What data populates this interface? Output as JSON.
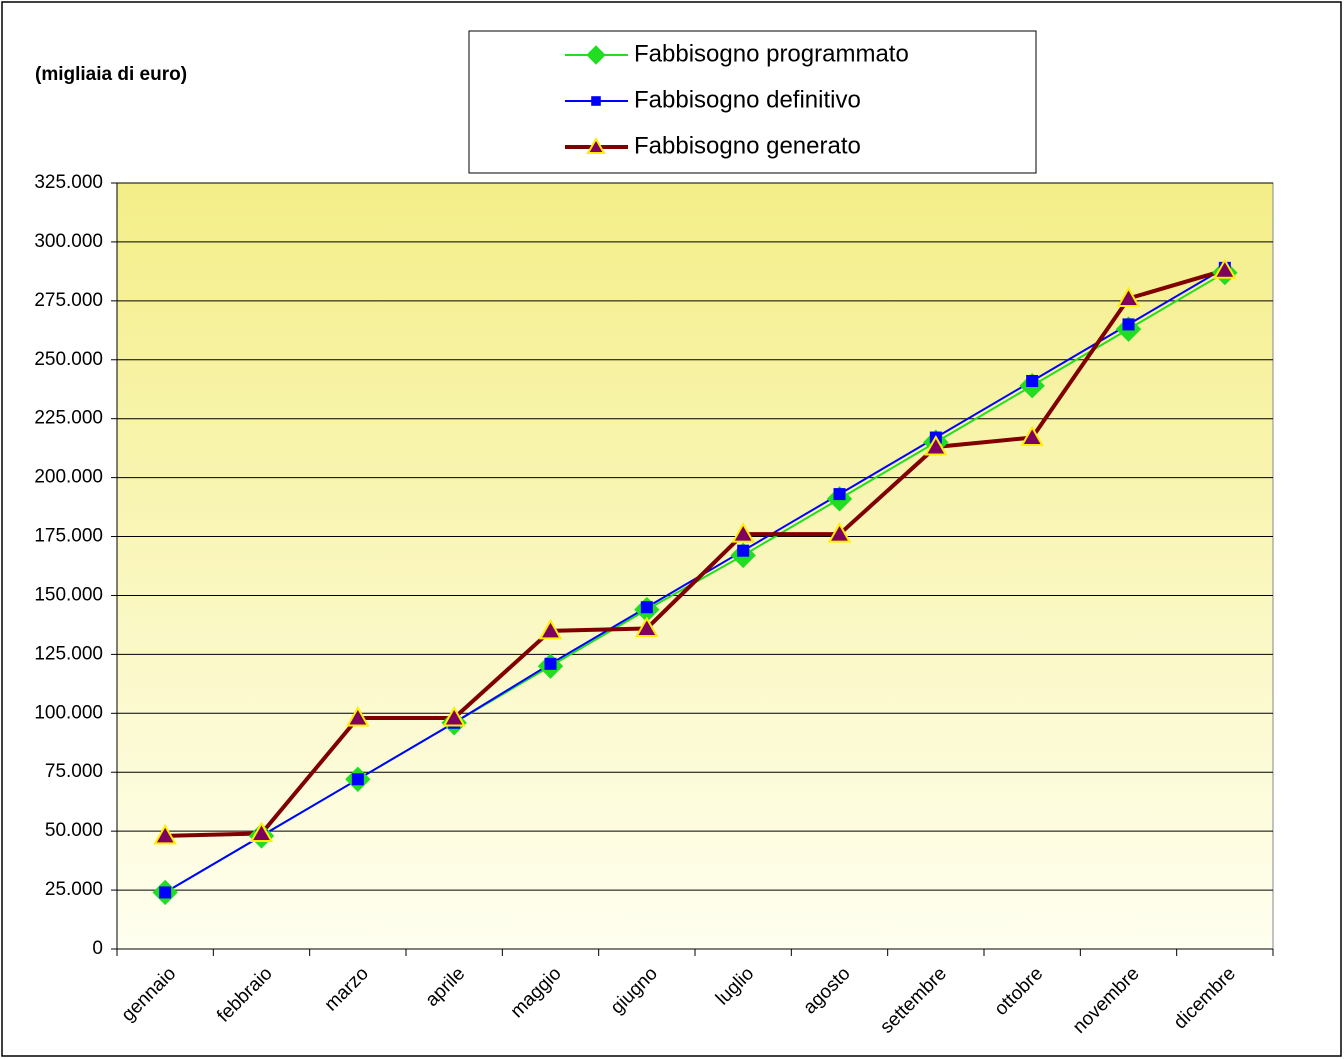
{
  "chart_data": {
    "type": "line",
    "title": "(migliaia di euro)",
    "categories": [
      "gennaio",
      "febbraio",
      "marzo",
      "aprile",
      "maggio",
      "giugno",
      "luglio",
      "agosto",
      "settembre",
      "ottobre",
      "novembre",
      "dicembre"
    ],
    "series": [
      {
        "name": "Fabbisogno programmato",
        "color": "#22dd22",
        "marker": "diamond",
        "values": [
          24000,
          48000,
          72000,
          96000,
          120000,
          144000,
          167000,
          191000,
          215000,
          239000,
          263000,
          287000
        ]
      },
      {
        "name": "Fabbisogno definitivo",
        "color": "#0000ff",
        "marker": "square",
        "values": [
          24000,
          48000,
          72000,
          96000,
          121000,
          145000,
          169000,
          193000,
          217000,
          241000,
          265000,
          289000
        ]
      },
      {
        "name": "Fabbisogno generato",
        "color": "#800000",
        "marker": "triangle",
        "values": [
          48000,
          49000,
          98000,
          98000,
          135000,
          136000,
          176000,
          176000,
          213000,
          217000,
          276000,
          288000
        ]
      }
    ],
    "ylim": [
      0,
      325000
    ],
    "yticks": [
      0,
      {
        "value": 25000,
        "label": "25.000"
      },
      {
        "value": 50000,
        "label": "50.000"
      },
      {
        "value": 75000,
        "label": "75.000"
      },
      {
        "value": 100000,
        "label": "100.000"
      },
      {
        "value": 125000,
        "label": "125.000"
      },
      {
        "value": 150000,
        "label": "150.000"
      },
      {
        "value": 175000,
        "label": "175.000"
      },
      {
        "value": 200000,
        "label": "200.000"
      },
      {
        "value": 225000,
        "label": "225.000"
      },
      {
        "value": 250000,
        "label": "250.000"
      },
      {
        "value": 275000,
        "label": "275.000"
      },
      {
        "value": 300000,
        "label": "300.000"
      },
      {
        "value": 325000,
        "label": "325.000"
      }
    ],
    "grid": true
  }
}
